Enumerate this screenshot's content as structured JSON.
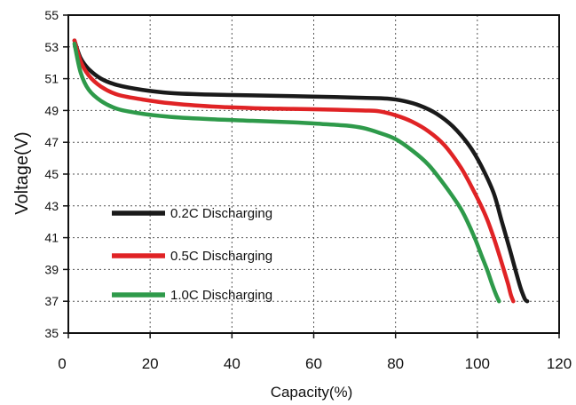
{
  "chart_data": {
    "type": "line",
    "title": "",
    "xlabel": "Capacity(%)",
    "ylabel": "Voltage(V)",
    "xlim": [
      0,
      120
    ],
    "ylim": [
      35,
      55
    ],
    "xticks": [
      0,
      20,
      40,
      60,
      80,
      100,
      120
    ],
    "yticks": [
      35,
      37,
      39,
      41,
      43,
      45,
      47,
      49,
      51,
      53,
      55
    ],
    "grid": "dotted",
    "legend_position": "left-inside",
    "series": [
      {
        "name": "0.2C Discharging",
        "color": "#1a1a1a",
        "x": [
          1.5,
          3,
          5,
          8,
          12,
          18,
          25,
          35,
          45,
          55,
          65,
          72,
          78,
          82,
          86,
          90,
          94,
          98,
          101,
          104,
          106,
          108,
          109.5,
          110.5,
          111.2,
          111.7,
          112.2
        ],
        "y": [
          53.4,
          52.3,
          51.6,
          51.0,
          50.6,
          50.3,
          50.1,
          50.0,
          49.95,
          49.9,
          49.85,
          49.8,
          49.75,
          49.6,
          49.3,
          48.8,
          48.0,
          46.8,
          45.5,
          43.8,
          42.0,
          40.2,
          38.8,
          37.9,
          37.4,
          37.1,
          37.0
        ]
      },
      {
        "name": "0.5C Discharging",
        "color": "#e02325",
        "x": [
          1.5,
          3,
          5,
          8,
          12,
          18,
          25,
          35,
          45,
          55,
          65,
          72,
          76,
          80,
          84,
          88,
          92,
          96,
          99,
          102,
          104,
          105.5,
          106.8,
          107.6,
          108.2,
          108.8
        ],
        "y": [
          53.4,
          52.1,
          51.2,
          50.5,
          50.0,
          49.7,
          49.45,
          49.25,
          49.15,
          49.1,
          49.05,
          49.0,
          48.95,
          48.7,
          48.3,
          47.7,
          46.8,
          45.4,
          44.0,
          42.4,
          41.0,
          39.8,
          38.7,
          38.0,
          37.4,
          37.0
        ]
      },
      {
        "name": "1.0C Discharging",
        "color": "#2e9a4a",
        "x": [
          1.5,
          3,
          5,
          8,
          12,
          18,
          25,
          35,
          45,
          55,
          62,
          68,
          72,
          76,
          80,
          84,
          88,
          92,
          96,
          99,
          101,
          102.5,
          103.7,
          104.6,
          105.3
        ],
        "y": [
          53.2,
          51.4,
          50.3,
          49.6,
          49.1,
          48.8,
          48.6,
          48.45,
          48.35,
          48.25,
          48.15,
          48.05,
          47.9,
          47.6,
          47.2,
          46.5,
          45.6,
          44.3,
          42.8,
          41.2,
          39.9,
          38.9,
          38.0,
          37.4,
          37.0
        ]
      }
    ]
  }
}
